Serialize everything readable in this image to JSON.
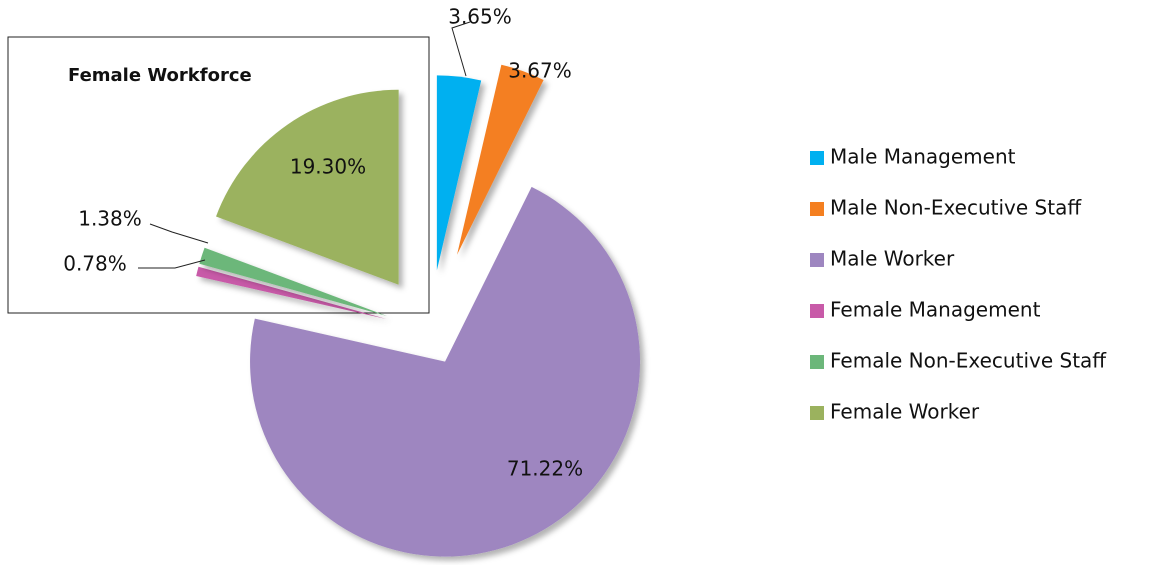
{
  "chart_data": {
    "type": "pie",
    "annotation": "Female Workforce",
    "categories": [
      "Male Management",
      "Male Non-Executive Staff",
      "Male Worker",
      "Female Management",
      "Female Non-Executive Staff",
      "Female Worker"
    ],
    "values": [
      3.65,
      3.67,
      71.22,
      0.78,
      1.38,
      19.3
    ],
    "value_labels": [
      "3.65%",
      "3.67%",
      "71.22%",
      "0.78%",
      "1.38%",
      "19.30%"
    ],
    "colors": [
      "#00b0f0",
      "#f47f20",
      "#9e86c0",
      "#c85aa8",
      "#6cb77a",
      "#9bb25e"
    ],
    "legend": "right"
  }
}
